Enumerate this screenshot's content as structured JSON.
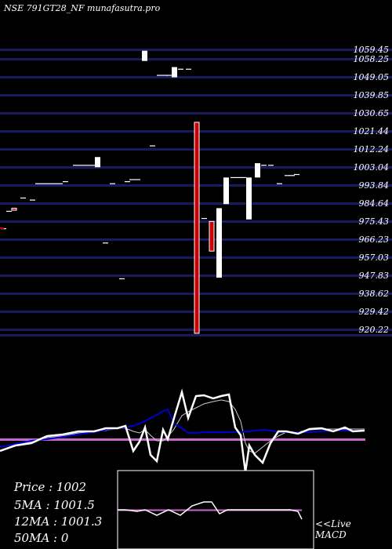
{
  "title": "NSE 791GT28_NF munafasutra.pro",
  "stats": {
    "price": "Price   : 1002",
    "ma5": "5MA : 1001.5",
    "ma12": "12MA : 1001.3",
    "ma50": "50MA : 0"
  },
  "live_label": "<<Live",
  "macd_label": "MACD",
  "colors": {
    "background": "#000000",
    "gridline": "#1a1a5e",
    "up_candle": "#ffffff",
    "down_candle": "#cc0000",
    "ma_line": "#0000cc",
    "signal_line": "#cc66cc"
  },
  "chart_data": {
    "type": "candlestick",
    "y_tick_labels": [
      "1059.45",
      "1058.25",
      "1049.05",
      "1039.85",
      "1030.65",
      "1021.44",
      "1012.24",
      "1003.04",
      "993.84",
      "984.64",
      "975.43",
      "966.23",
      "957.03",
      "947.83",
      "938.62",
      "929.42",
      "920.22"
    ],
    "ylim": [
      920.22,
      1059.45
    ],
    "candles": [
      {
        "x": 4,
        "o": 972.0,
        "c": 972.0
      },
      {
        "x": 11,
        "o": 980.5,
        "c": 980.5
      },
      {
        "x": 17,
        "o": 981.0,
        "c": 982.0,
        "dir": "down"
      },
      {
        "x": 29,
        "o": 987.0,
        "c": 987.0
      },
      {
        "x": 41,
        "o": 986.0,
        "c": 986.0
      },
      {
        "x": 48,
        "o": 994.0,
        "c": 994.0
      },
      {
        "x": 55,
        "o": 994.0,
        "c": 994.0
      },
      {
        "x": 62,
        "o": 994.0,
        "c": 994.0
      },
      {
        "x": 69,
        "o": 994.0,
        "c": 994.0
      },
      {
        "x": 76,
        "o": 994.0,
        "c": 994.0
      },
      {
        "x": 83,
        "o": 995.0,
        "c": 995.0
      },
      {
        "x": 96,
        "o": 1003.0,
        "c": 1003.0
      },
      {
        "x": 103,
        "o": 1003.0,
        "c": 1003.0
      },
      {
        "x": 110,
        "o": 1003.0,
        "c": 1003.0
      },
      {
        "x": 117,
        "o": 1003.0,
        "c": 1003.0
      },
      {
        "x": 124,
        "o": 1002.0,
        "c": 1007.0,
        "dir": "up"
      },
      {
        "x": 134,
        "o": 965.0,
        "c": 965.0
      },
      {
        "x": 143,
        "o": 994.0,
        "c": 994.0
      },
      {
        "x": 155,
        "o": 947.5,
        "c": 947.5
      },
      {
        "x": 162,
        "o": 995.0,
        "c": 995.0
      },
      {
        "x": 168,
        "o": 996.0,
        "c": 996.0
      },
      {
        "x": 175,
        "o": 996.0,
        "c": 996.0
      },
      {
        "x": 184,
        "o": 1054.0,
        "c": 1059.0,
        "dir": "up"
      },
      {
        "x": 194,
        "o": 1012.5,
        "c": 1012.5
      },
      {
        "x": 203,
        "o": 1047.0,
        "c": 1047.0
      },
      {
        "x": 210,
        "o": 1047.0,
        "c": 1047.0
      },
      {
        "x": 215,
        "o": 1047.0,
        "c": 1047.0
      },
      {
        "x": 222,
        "o": 1046.0,
        "c": 1051.0,
        "dir": "up"
      },
      {
        "x": 230,
        "o": 1050.0,
        "c": 1050.0
      },
      {
        "x": 240,
        "o": 1050.0,
        "c": 1050.0
      },
      {
        "x": 250,
        "o": 1024.0,
        "c": 920.8,
        "dir": "down"
      },
      {
        "x": 260,
        "o": 977.0,
        "c": 977.0
      },
      {
        "x": 269,
        "o": 975.5,
        "c": 961.0,
        "dir": "down"
      },
      {
        "x": 279,
        "o": 948.0,
        "c": 982.0,
        "dir": "up"
      },
      {
        "x": 288,
        "o": 984.0,
        "c": 997.0,
        "dir": "up"
      },
      {
        "x": 297,
        "o": 997.0,
        "c": 997.0
      },
      {
        "x": 304,
        "o": 997.0,
        "c": 997.0
      },
      {
        "x": 310,
        "o": 997.0,
        "c": 997.0
      },
      {
        "x": 317,
        "o": 976.5,
        "c": 997.0,
        "dir": "up"
      },
      {
        "x": 328,
        "o": 997.0,
        "c": 1004.0,
        "dir": "up"
      },
      {
        "x": 336,
        "o": 1003.0,
        "c": 1003.0
      },
      {
        "x": 345,
        "o": 1003.0,
        "c": 1003.0
      },
      {
        "x": 356,
        "o": 994.0,
        "c": 994.0
      },
      {
        "x": 366,
        "o": 998.0,
        "c": 998.0
      },
      {
        "x": 372,
        "o": 998.0,
        "c": 998.0
      },
      {
        "x": 378,
        "o": 998.5,
        "c": 998.5
      }
    ],
    "indicator": {
      "x": [
        0,
        20,
        40,
        60,
        80,
        100,
        120,
        135,
        150,
        160,
        170,
        178,
        185,
        192,
        200,
        208,
        214,
        222,
        232,
        240,
        250,
        260,
        272,
        282,
        292,
        300,
        307,
        313,
        318,
        325,
        335,
        345,
        355,
        365,
        380,
        395,
        410,
        425,
        440,
        450,
        465
      ],
      "price": [
        575,
        568,
        565,
        556,
        554,
        550,
        550,
        546,
        546,
        543,
        575,
        563,
        545,
        580,
        588,
        548,
        560,
        533,
        500,
        533,
        505,
        504,
        508,
        505,
        503,
        545,
        555,
        602,
        568,
        580,
        590,
        565,
        550,
        550,
        553,
        547,
        546,
        550,
        545,
        550,
        549
      ],
      "ma": [
        570,
        566,
        562,
        560,
        557,
        554,
        551,
        548,
        546,
        545,
        543,
        540,
        537,
        533,
        529,
        524,
        522,
        540,
        546,
        552,
        552,
        551,
        551,
        551,
        551,
        551,
        551,
        550,
        550,
        549,
        548,
        549,
        551,
        551,
        551,
        551,
        550,
        549,
        549,
        549,
        549
      ],
      "smooth": [
        570,
        567,
        563,
        558,
        556,
        552,
        550,
        549,
        546,
        546,
        550,
        552,
        548,
        555,
        562,
        562,
        557,
        547,
        530,
        525,
        520,
        515,
        512,
        510,
        512,
        522,
        537,
        565,
        575,
        578,
        570,
        562,
        556,
        551,
        551,
        548,
        547,
        547,
        547,
        547,
        547
      ]
    },
    "macd": {
      "x": [
        150,
        160,
        175,
        185,
        200,
        215,
        230,
        245,
        260,
        270,
        280,
        290,
        300,
        315,
        330,
        345,
        360,
        370,
        380,
        385
      ],
      "values": [
        650,
        650,
        652,
        650,
        657,
        650,
        657,
        645,
        640,
        640,
        655,
        650,
        650,
        650,
        650,
        650,
        650,
        650,
        652,
        662
      ]
    }
  }
}
